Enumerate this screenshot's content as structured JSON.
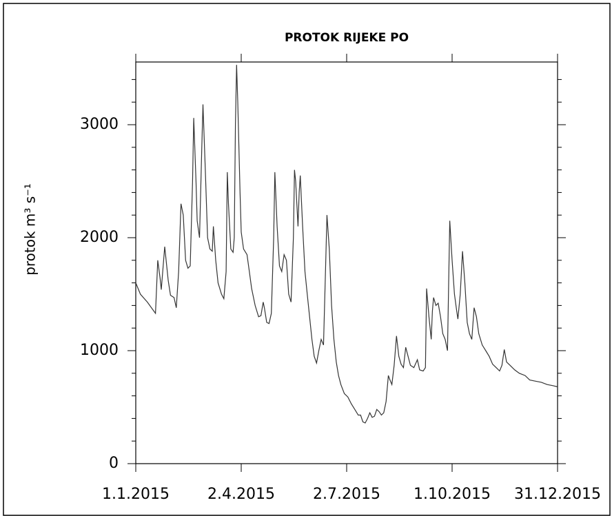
{
  "chart_data": {
    "type": "line",
    "title": "PROTOK RIJEKE PO",
    "ylabel": "protok m³ s⁻¹",
    "xlim": [
      0,
      364
    ],
    "ylim": [
      0,
      3555
    ],
    "xticks": [
      {
        "value": 0,
        "label": "1.1.2015"
      },
      {
        "value": 91,
        "label": "2.4.2015"
      },
      {
        "value": 182,
        "label": "2.7.2015"
      },
      {
        "value": 273,
        "label": "1.10.2015"
      },
      {
        "value": 364,
        "label": "31.12.2015"
      }
    ],
    "yticks": [
      0,
      1000,
      2000,
      3000
    ],
    "yminorticks": [
      200,
      400,
      600,
      800,
      1200,
      1400,
      1600,
      1800,
      2200,
      2400,
      2600,
      2800,
      3200,
      3400
    ],
    "series": [
      {
        "color": "#333333",
        "x": [
          0,
          4,
          10,
          17,
          19,
          21,
          22,
          25,
          28,
          30,
          33,
          35,
          37,
          39,
          41,
          43,
          45,
          47,
          49,
          50,
          52,
          53,
          55,
          57,
          58,
          60,
          62,
          64,
          66,
          67,
          69,
          71,
          74,
          76,
          78,
          79,
          80,
          82,
          84,
          85,
          86,
          87,
          88,
          90,
          91,
          93,
          96,
          98,
          100,
          103,
          106,
          108,
          110,
          111,
          113,
          115,
          117,
          119,
          120,
          122,
          124,
          126,
          128,
          130,
          132,
          134,
          136,
          137,
          138,
          140,
          141,
          142,
          144,
          146,
          148,
          150,
          152,
          154,
          156,
          158,
          160,
          162,
          164,
          165,
          167,
          169,
          171,
          173,
          175,
          177,
          180,
          183,
          186,
          189,
          192,
          194,
          196,
          198,
          200,
          202,
          204,
          206,
          208,
          210,
          212,
          214,
          216,
          218,
          219,
          221,
          223,
          225,
          227,
          229,
          231,
          233,
          235,
          237,
          240,
          243,
          245,
          248,
          250,
          251,
          253,
          255,
          256,
          257,
          259,
          261,
          263,
          265,
          267,
          269,
          270,
          271,
          273,
          275,
          277,
          278,
          280,
          282,
          284,
          286,
          288,
          290,
          292,
          294,
          296,
          299,
          302,
          305,
          308,
          311,
          314,
          316,
          318,
          320,
          323,
          327,
          331,
          336,
          340,
          345,
          350,
          355,
          360,
          364
        ],
        "values": [
          1600,
          1500,
          1430,
          1330,
          1800,
          1640,
          1540,
          1920,
          1620,
          1490,
          1470,
          1380,
          1700,
          2300,
          2200,
          1800,
          1730,
          1750,
          2500,
          3060,
          2500,
          2150,
          2000,
          2800,
          3180,
          2600,
          2000,
          1900,
          1880,
          2100,
          1800,
          1600,
          1500,
          1460,
          1700,
          2580,
          2300,
          1900,
          1870,
          2000,
          3000,
          3530,
          3200,
          2400,
          2050,
          1900,
          1850,
          1700,
          1550,
          1400,
          1300,
          1310,
          1430,
          1380,
          1250,
          1240,
          1330,
          2000,
          2580,
          2100,
          1750,
          1700,
          1850,
          1800,
          1500,
          1430,
          2000,
          2600,
          2500,
          2100,
          2400,
          2550,
          2100,
          1700,
          1500,
          1300,
          1100,
          950,
          890,
          1000,
          1100,
          1050,
          1800,
          2200,
          1900,
          1400,
          1100,
          900,
          780,
          700,
          620,
          590,
          530,
          480,
          430,
          430,
          370,
          360,
          400,
          450,
          410,
          420,
          480,
          460,
          430,
          450,
          550,
          780,
          750,
          700,
          870,
          1130,
          950,
          880,
          850,
          1030,
          950,
          870,
          850,
          920,
          830,
          820,
          850,
          1550,
          1300,
          1100,
          1350,
          1470,
          1400,
          1420,
          1300,
          1150,
          1100,
          1000,
          1600,
          2150,
          1800,
          1500,
          1350,
          1280,
          1500,
          1880,
          1600,
          1250,
          1150,
          1100,
          1380,
          1300,
          1150,
          1050,
          1000,
          950,
          880,
          850,
          820,
          870,
          1010,
          900,
          870,
          830,
          800,
          780,
          740,
          730,
          720,
          700,
          690,
          680
        ]
      }
    ]
  }
}
